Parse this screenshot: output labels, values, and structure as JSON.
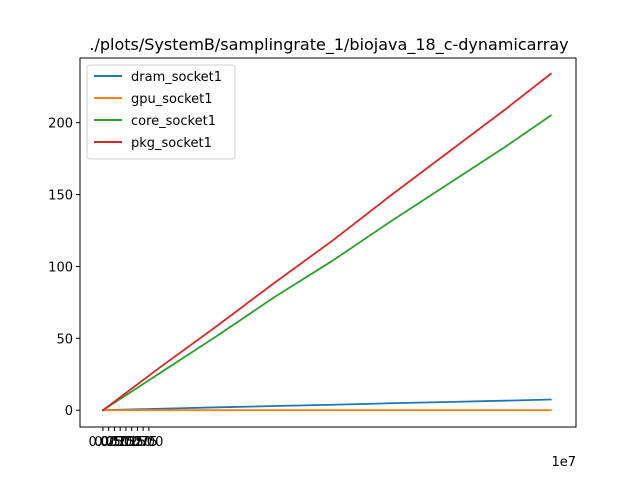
{
  "chart_data": {
    "type": "line",
    "title": "./plots/SystemB/samplingrate_1/biojava_18_c-dynamicarray",
    "xlabel": "",
    "ylabel": "",
    "x_offset_label": "1e7",
    "xlim": [
      -1.0,
      20.6
    ],
    "ylim": [
      -11.7,
      245
    ],
    "xticks": [
      0.0,
      0.25,
      0.5,
      0.75,
      1.0,
      1.25,
      1.5,
      1.75,
      2.0
    ],
    "xtick_labels": [
      "0.00",
      "0.25",
      "0.50",
      "0.75",
      "1.00",
      "1.25",
      "1.50",
      "1.75",
      "2.00"
    ],
    "yticks": [
      0,
      50,
      100,
      150,
      200
    ],
    "ytick_labels": [
      "0",
      "50",
      "100",
      "150",
      "200"
    ],
    "grid": false,
    "legend_position": "top-left",
    "series": [
      {
        "name": "dram_socket1",
        "color": "#1f77b4",
        "x": [
          0,
          2.5,
          5,
          7.5,
          10,
          12.5,
          15,
          17.5,
          19.5
        ],
        "y": [
          0,
          1.0,
          2.0,
          2.9,
          3.8,
          4.8,
          5.7,
          6.6,
          7.4
        ]
      },
      {
        "name": "gpu_socket1",
        "color": "#ff7f0e",
        "x": [
          0,
          2.5,
          5,
          7.5,
          10,
          12.5,
          15,
          17.5,
          19.5
        ],
        "y": [
          0,
          0,
          0,
          0,
          0,
          0,
          0,
          0,
          0
        ]
      },
      {
        "name": "core_socket1",
        "color": "#2ca02c",
        "x": [
          0,
          2.5,
          5,
          7.5,
          10,
          12.5,
          15,
          17.5,
          19.5
        ],
        "y": [
          0,
          26,
          52,
          79,
          104,
          131,
          157,
          183,
          205
        ]
      },
      {
        "name": "pkg_socket1",
        "color": "#d62728",
        "x": [
          0,
          2.5,
          5,
          7.5,
          10,
          12.5,
          15,
          17.5,
          19.5
        ],
        "y": [
          0,
          30,
          59,
          89,
          118,
          149,
          179,
          209,
          234
        ]
      }
    ]
  }
}
